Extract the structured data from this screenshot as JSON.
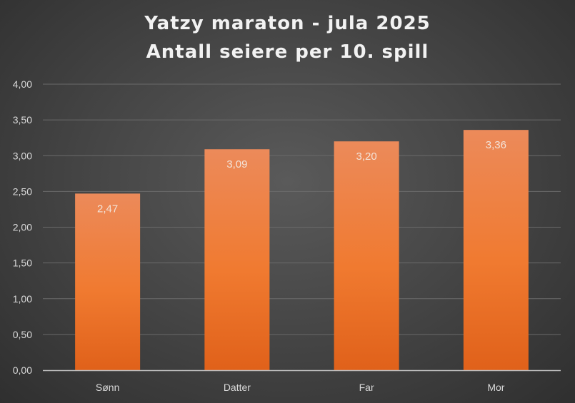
{
  "chart_data": {
    "type": "bar",
    "title": "Yatzy maraton - jula 2025",
    "subtitle": "Antall seiere per 10. spill",
    "categories": [
      "Sønn",
      "Datter",
      "Far",
      "Mor"
    ],
    "values": [
      2.47,
      3.09,
      3.2,
      3.36
    ],
    "value_labels": [
      "2,47",
      "3,09",
      "3,20",
      "3,36"
    ],
    "ylim": [
      0,
      4
    ],
    "y_ticks": [
      0,
      0.5,
      1,
      1.5,
      2,
      2.5,
      3,
      3.5,
      4
    ],
    "y_tick_labels": [
      "0,00",
      "0,50",
      "1,00",
      "1,50",
      "2,00",
      "2,50",
      "3,00",
      "3,50",
      "4,00"
    ],
    "xlabel": "",
    "ylabel": "",
    "grid": true,
    "legend": "none",
    "colors": {
      "bar_top": "#ec8a5a",
      "bar_mid": "#f07a30",
      "bar_bottom": "#e0611a",
      "grid": "#6a6a6a",
      "axis": "#bfbfbf"
    }
  }
}
